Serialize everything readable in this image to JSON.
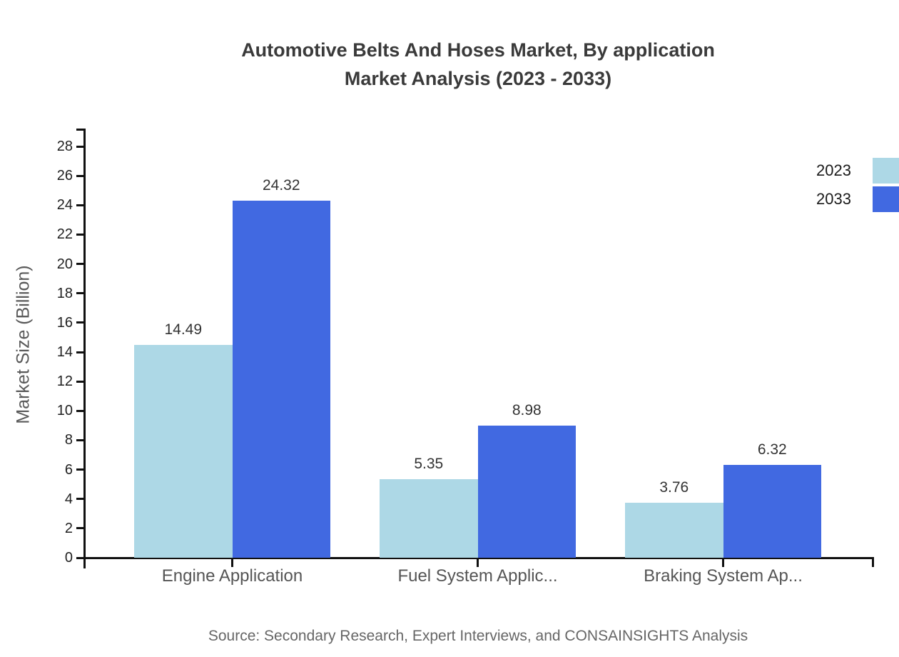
{
  "title": {
    "line1": "Automotive Belts And Hoses Market, By application",
    "line2": "Market Analysis (2023 - 2033)"
  },
  "source": "Source: Secondary Research, Expert Interviews, and CONSAINSIGHTS Analysis",
  "colors": {
    "axis": "#111111",
    "title_text": "#3a3a3a",
    "tick_text": "#1f1f1f",
    "category_text": "#555555",
    "value_text": "#333333",
    "ylabel_text": "#595959",
    "source_text": "#666666",
    "series_2023": "#add8e6",
    "series_2033": "#4169e1"
  },
  "chart_data": {
    "type": "bar",
    "title": "Automotive Belts And Hoses Market, By application Market Analysis (2023 - 2033)",
    "categories": [
      "Engine Application",
      "Fuel System Applic...",
      "Braking System Ap..."
    ],
    "series": [
      {
        "name": "2023",
        "color": "#add8e6",
        "values": [
          14.49,
          5.35,
          3.76
        ]
      },
      {
        "name": "2033",
        "color": "#4169e1",
        "values": [
          24.32,
          8.98,
          6.32
        ]
      }
    ],
    "xlabel": "",
    "ylabel": "Market Size (Billion)",
    "ylim": [
      0,
      28
    ],
    "ytick_step": 2,
    "grid": false,
    "legend_position": "top-right",
    "value_labels": true
  }
}
